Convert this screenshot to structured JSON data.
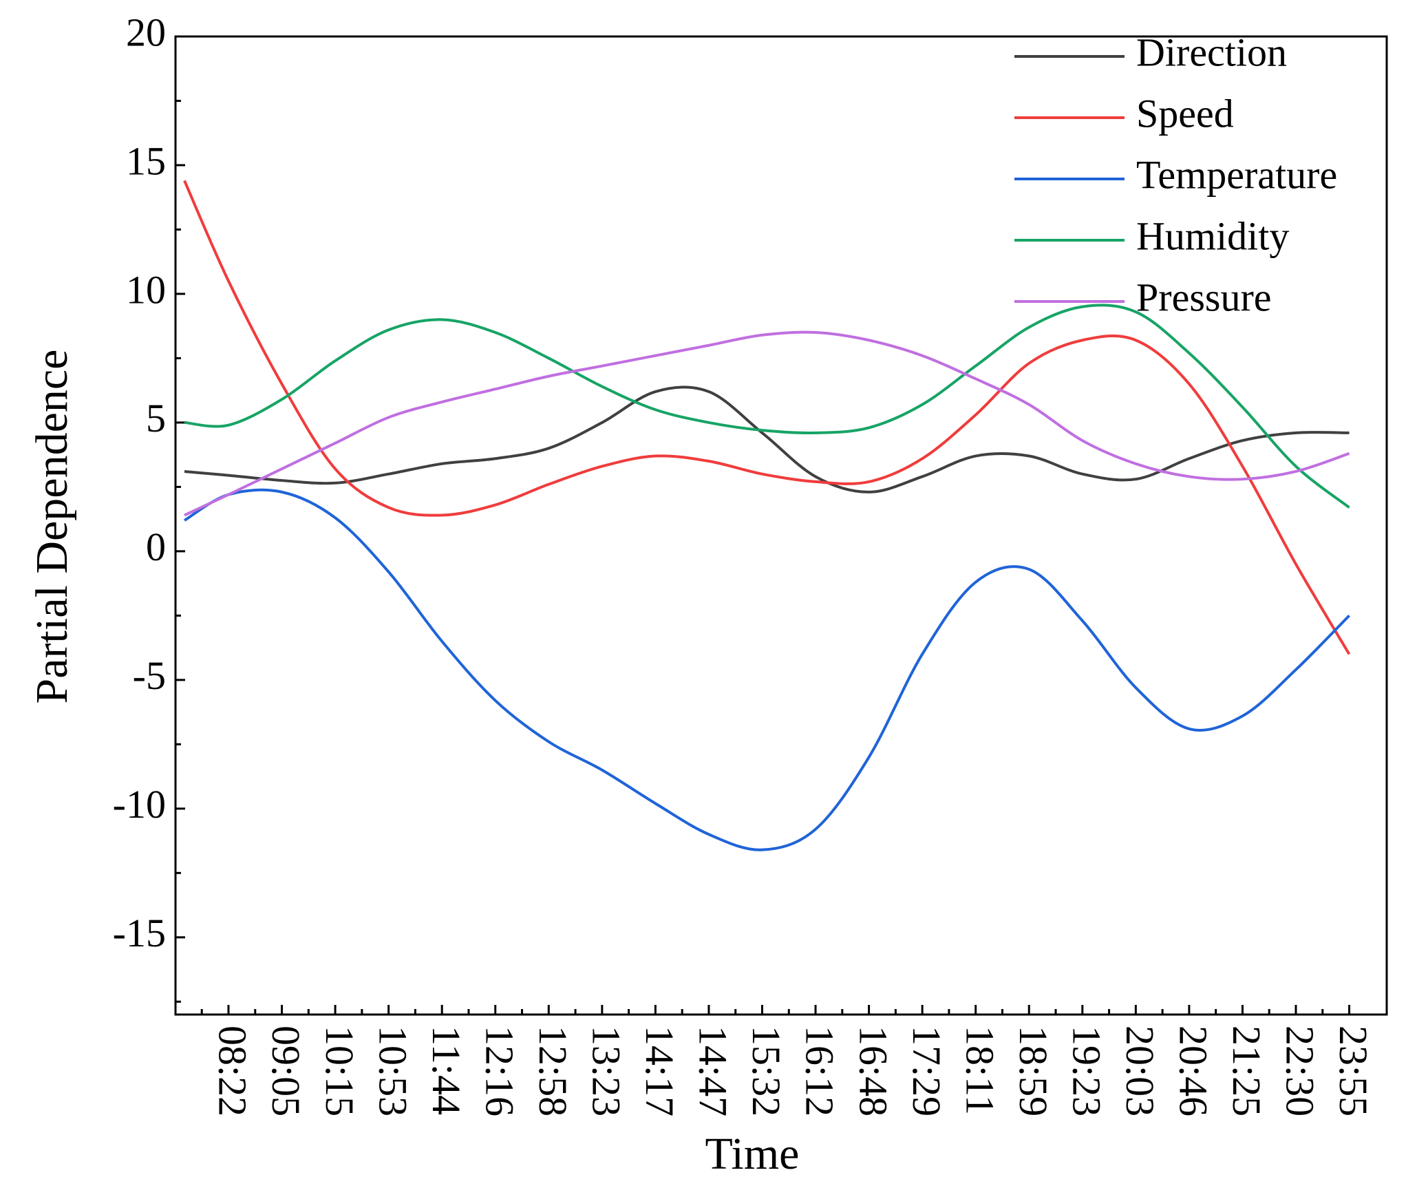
{
  "chart_data": {
    "type": "line",
    "xlabel": "Time",
    "ylabel": "Partial Dependence",
    "categories": [
      null,
      "08:22",
      "09:05",
      "10:15",
      "10:53",
      "11:44",
      "12:16",
      "12:58",
      "13:23",
      "14:17",
      "14:47",
      "15:32",
      "16:12",
      "16:48",
      "17:29",
      "18:11",
      "18:59",
      "19:23",
      "20:03",
      "20:46",
      "21:25",
      "22:30",
      "23:55"
    ],
    "series": [
      {
        "name": "Direction",
        "color": "#404040",
        "values": [
          3.1,
          2.95,
          2.75,
          2.65,
          3.0,
          3.4,
          3.6,
          4.0,
          5.0,
          6.2,
          6.2,
          4.6,
          2.9,
          2.3,
          2.9,
          3.7,
          3.7,
          3.0,
          2.8,
          3.6,
          4.3,
          4.6,
          4.6
        ]
      },
      {
        "name": "Speed",
        "color": "#f03c3c",
        "values": [
          14.4,
          10.5,
          6.5,
          3.2,
          1.7,
          1.4,
          1.8,
          2.6,
          3.3,
          3.7,
          3.5,
          3.0,
          2.7,
          2.7,
          3.6,
          5.3,
          7.3,
          8.2,
          8.2,
          6.5,
          3.3,
          -0.5,
          -4.0
        ]
      },
      {
        "name": "Temperature",
        "color": "#1f64d8",
        "values": [
          1.2,
          2.2,
          2.3,
          1.3,
          -0.8,
          -3.5,
          -5.8,
          -7.4,
          -8.5,
          -9.8,
          -11.0,
          -11.6,
          -10.8,
          -8.0,
          -4.0,
          -1.2,
          -0.7,
          -2.7,
          -5.3,
          -6.9,
          -6.4,
          -4.6,
          -2.5
        ]
      },
      {
        "name": "Humidity",
        "color": "#17a466",
        "values": [
          5.0,
          4.9,
          5.9,
          7.4,
          8.6,
          9.0,
          8.5,
          7.5,
          6.4,
          5.5,
          5.0,
          4.7,
          4.6,
          4.8,
          5.7,
          7.2,
          8.7,
          9.5,
          9.3,
          7.7,
          5.6,
          3.3,
          1.7
        ]
      },
      {
        "name": "Pressure",
        "color": "#c06fe0",
        "values": [
          1.4,
          2.2,
          3.2,
          4.2,
          5.2,
          5.8,
          6.3,
          6.8,
          7.2,
          7.6,
          8.0,
          8.4,
          8.5,
          8.2,
          7.6,
          6.7,
          5.7,
          4.3,
          3.4,
          2.9,
          2.8,
          3.1,
          3.8
        ]
      }
    ],
    "ylim": [
      -18,
      20
    ],
    "yticks": [
      -15,
      -10,
      -5,
      0,
      5,
      10,
      15,
      20
    ],
    "legend": "upper right"
  }
}
